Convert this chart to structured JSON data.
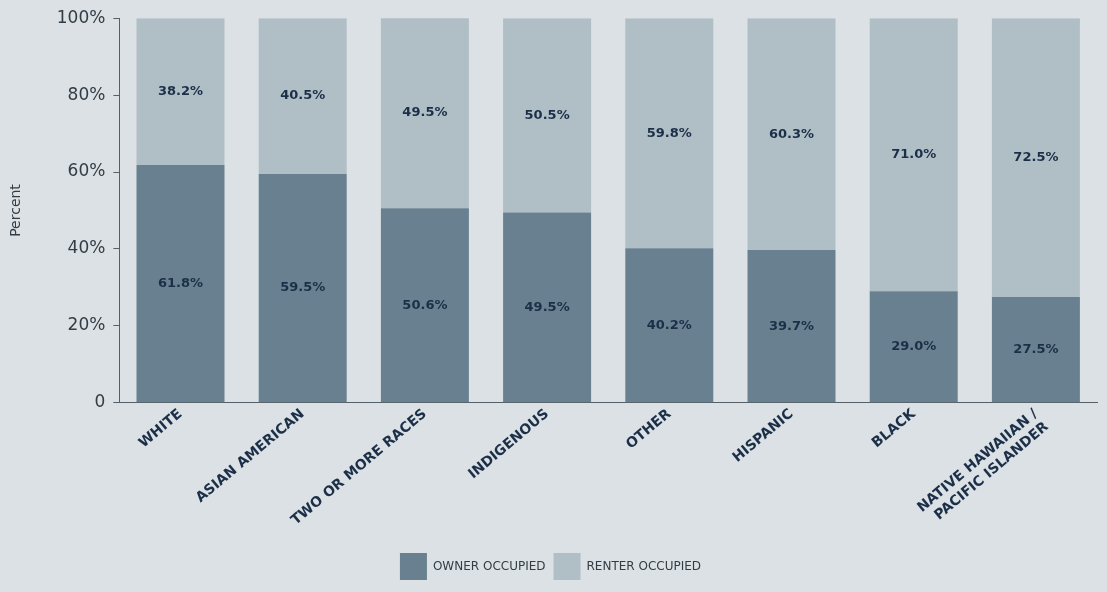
{
  "chart_data": {
    "type": "bar",
    "stacked": true,
    "ylabel": "Percent",
    "categories": [
      "WHITE",
      "ASIAN AMERICAN",
      "TWO OR MORE RACES",
      "INDIGENOUS",
      "OTHER",
      "HISPANIC",
      "BLACK",
      "NATIVE HAWAIIAN / PACIFIC ISLANDER"
    ],
    "series": [
      {
        "name": "OWNER OCCUPIED",
        "color": "#68808f",
        "values": [
          61.8,
          59.5,
          50.6,
          49.5,
          40.2,
          39.7,
          29.0,
          27.5
        ],
        "value_labels": [
          "61.8%",
          "59.5%",
          "50.6%",
          "49.5%",
          "40.2%",
          "39.7%",
          "29.0%",
          "27.5%"
        ]
      },
      {
        "name": "RENTER OCCUPIED",
        "color": "#b0bec6",
        "values": [
          38.2,
          40.5,
          49.5,
          50.5,
          59.8,
          60.3,
          71.0,
          72.5
        ],
        "value_labels": [
          "38.2%",
          "40.5%",
          "49.5%",
          "50.5%",
          "59.8%",
          "60.3%",
          "71.0%",
          "72.5%"
        ]
      }
    ],
    "ylim": [
      0,
      100
    ],
    "yticks": [
      0,
      {
        "value": 20,
        "label": "20%"
      },
      {
        "value": 40,
        "label": "40%"
      },
      {
        "value": 60,
        "label": "60%"
      },
      {
        "value": 80,
        "label": "80%"
      },
      {
        "value": 100,
        "label": "100%"
      }
    ],
    "grid": false,
    "legend": "bottom"
  }
}
